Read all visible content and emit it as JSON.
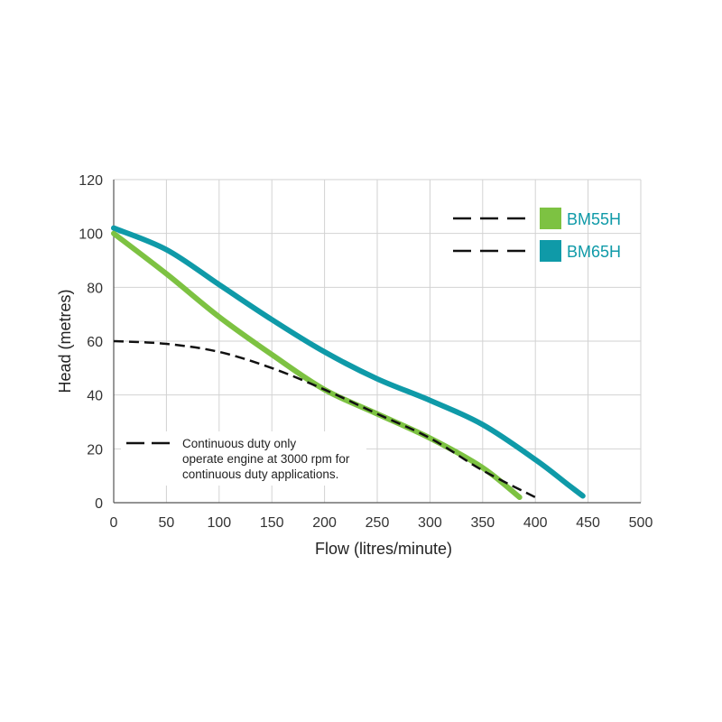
{
  "chart_data": {
    "type": "line",
    "xlabel": "Flow (litres/minute)",
    "ylabel": "Head (metres)",
    "xlim": [
      0,
      500
    ],
    "ylim": [
      0,
      120
    ],
    "x_ticks": [
      "0",
      "50",
      "100",
      "150",
      "200",
      "250",
      "300",
      "350",
      "400",
      "450",
      "500"
    ],
    "y_ticks": [
      "0",
      "20",
      "40",
      "60",
      "80",
      "100",
      "120"
    ],
    "grid": true,
    "legend_position": "top-right",
    "series": [
      {
        "name": "BM55H",
        "color": "#7dc242",
        "style": "solid",
        "points": [
          [
            0,
            100
          ],
          [
            50,
            85
          ],
          [
            100,
            69
          ],
          [
            150,
            55
          ],
          [
            200,
            42
          ],
          [
            250,
            33
          ],
          [
            300,
            24
          ],
          [
            350,
            13
          ],
          [
            385,
            2
          ]
        ]
      },
      {
        "name": "BM65H",
        "color": "#0f9aa8",
        "style": "solid",
        "points": [
          [
            0,
            102
          ],
          [
            50,
            94
          ],
          [
            100,
            81
          ],
          [
            150,
            68
          ],
          [
            200,
            56
          ],
          [
            250,
            46
          ],
          [
            300,
            38
          ],
          [
            350,
            29
          ],
          [
            400,
            16
          ],
          [
            430,
            7
          ],
          [
            445,
            2.5
          ]
        ]
      },
      {
        "name": "Continuous duty only",
        "color": "#111111",
        "style": "dashed",
        "points": [
          [
            0,
            60
          ],
          [
            50,
            59
          ],
          [
            100,
            56
          ],
          [
            150,
            50
          ],
          [
            200,
            42
          ],
          [
            250,
            33
          ],
          [
            300,
            24
          ],
          [
            350,
            12
          ],
          [
            400,
            2
          ]
        ]
      }
    ],
    "legend": [
      {
        "label": "BM55H",
        "color": "#7dc242"
      },
      {
        "label": "BM65H",
        "color": "#0f9aa8"
      }
    ],
    "annotation": {
      "line1": "Continuous duty only",
      "line2": "operate engine at 3000 rpm for",
      "line3": "continuous duty applications."
    }
  }
}
